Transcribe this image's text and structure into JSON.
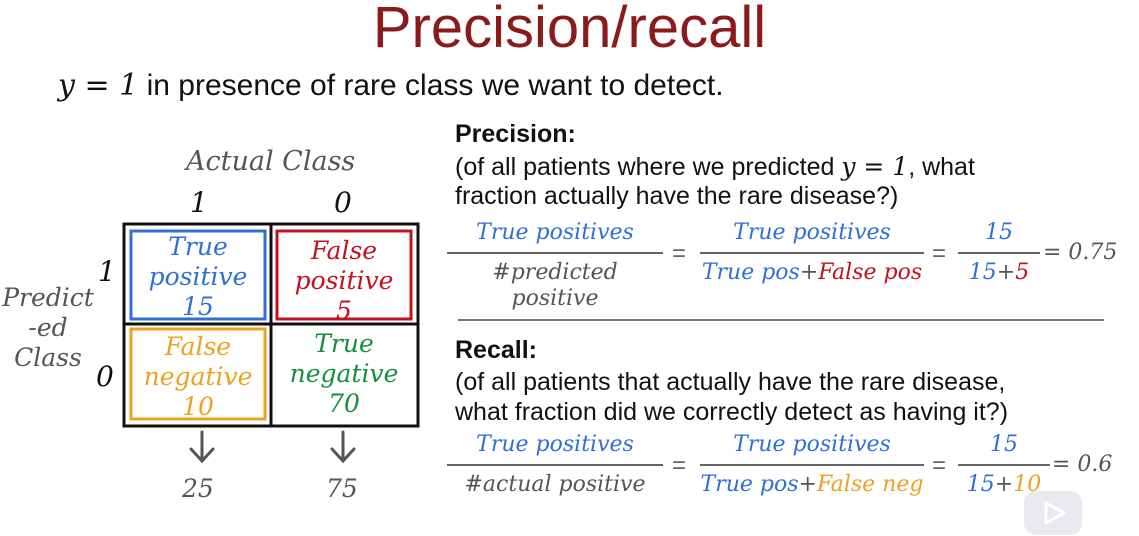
{
  "title": "Precision/recall",
  "subtitle": {
    "math": "y = 1",
    "text": " in presence of rare class we want to detect."
  },
  "matrix": {
    "actual_class_label": "Actual Class",
    "actual_1": "1",
    "actual_0": "0",
    "predicted_label_lines": [
      "Predict",
      "-ed",
      "Class"
    ],
    "predicted_1": "1",
    "predicted_0": "0",
    "cells": {
      "tp": {
        "lines": [
          "True",
          "positive"
        ],
        "count": "15",
        "color": "#2f6fd6"
      },
      "fp": {
        "lines": [
          "False",
          "positive"
        ],
        "count": "5",
        "color": "#c1121f"
      },
      "fn": {
        "lines": [
          "False",
          "negative"
        ],
        "count": "10",
        "color": "#f0a020"
      },
      "tn": {
        "lines": [
          "True",
          "negative"
        ],
        "count": "70",
        "color": "#14903b"
      }
    },
    "column_totals": [
      "25",
      "75"
    ]
  },
  "precision": {
    "heading": "Precision:",
    "desc_1a": "(of all patients where we predicted ",
    "desc_1math": "y = 1",
    "desc_1b": ", what",
    "desc_2": "fraction actually have the rare disease?)",
    "f1_num": "True positives",
    "f1_den": "#predicted positive",
    "f2_num": "True positives",
    "f2_den_a": "True pos",
    "f2_den_plus": "+",
    "f2_den_b": "False pos",
    "f3_num": "15",
    "f3_den_a": "15",
    "f3_den_plus": "+",
    "f3_den_b": "5",
    "equals": "=",
    "result": "= 0.75"
  },
  "recall": {
    "heading": "Recall:",
    "desc_1": "(of all patients that actually have the rare disease,",
    "desc_2": "what fraction did we correctly detect as having it?)",
    "f1_num": "True positives",
    "f1_den": "#actual positive",
    "f2_num": "True positives",
    "f2_den_a": "True pos",
    "f2_den_plus": "+",
    "f2_den_b": "False neg",
    "f3_num": "15",
    "f3_den_a": "15",
    "f3_den_plus": "+",
    "f3_den_b": "10",
    "equals": "=",
    "result": "= 0.6"
  }
}
